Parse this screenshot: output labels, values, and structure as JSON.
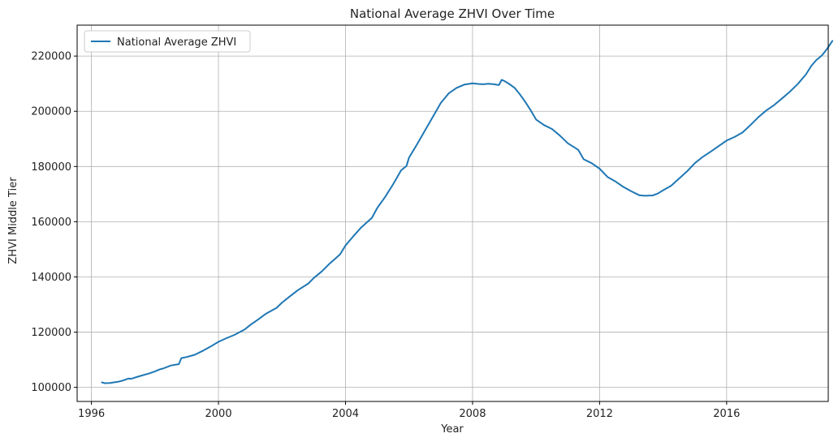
{
  "chart_data": {
    "type": "line",
    "title": "National Average ZHVI Over Time",
    "xlabel": "Year",
    "ylabel": "ZHVI Middle Tier",
    "xlim": [
      1995.55,
      2019.2
    ],
    "ylim": [
      94900,
      231200
    ],
    "grid": true,
    "legend_position": "top-left",
    "x_ticks": [
      1996,
      2000,
      2004,
      2008,
      2012,
      2016
    ],
    "x_tick_labels": [
      "1996",
      "2000",
      "2004",
      "2008",
      "2012",
      "2016"
    ],
    "y_ticks": [
      100000,
      120000,
      140000,
      160000,
      180000,
      200000,
      220000
    ],
    "y_tick_labels": [
      "100000",
      "120000",
      "140000",
      "160000",
      "180000",
      "200000",
      "220000"
    ],
    "series": [
      {
        "name": "National Average ZHVI",
        "color": "#1f77b4",
        "points": [
          [
            1996.33,
            101800
          ],
          [
            1996.42,
            101500
          ],
          [
            1996.58,
            101600
          ],
          [
            1996.83,
            102000
          ],
          [
            1997.0,
            102500
          ],
          [
            1997.17,
            103200
          ],
          [
            1997.25,
            103100
          ],
          [
            1997.5,
            104000
          ],
          [
            1997.83,
            105100
          ],
          [
            1998.0,
            105800
          ],
          [
            1998.17,
            106600
          ],
          [
            1998.25,
            106800
          ],
          [
            1998.5,
            107900
          ],
          [
            1998.75,
            108400
          ],
          [
            1998.83,
            110600
          ],
          [
            1999.0,
            111000
          ],
          [
            1999.25,
            111800
          ],
          [
            1999.5,
            113200
          ],
          [
            1999.75,
            114800
          ],
          [
            2000.0,
            116500
          ],
          [
            2000.25,
            117800
          ],
          [
            2000.5,
            119000
          ],
          [
            2000.83,
            121000
          ],
          [
            2001.0,
            122600
          ],
          [
            2001.25,
            124600
          ],
          [
            2001.5,
            126700
          ],
          [
            2001.83,
            128800
          ],
          [
            2002.0,
            130700
          ],
          [
            2002.25,
            133000
          ],
          [
            2002.5,
            135200
          ],
          [
            2002.83,
            137600
          ],
          [
            2003.0,
            139600
          ],
          [
            2003.25,
            142000
          ],
          [
            2003.5,
            144800
          ],
          [
            2003.83,
            148200
          ],
          [
            2004.0,
            151400
          ],
          [
            2004.25,
            154800
          ],
          [
            2004.5,
            158000
          ],
          [
            2004.83,
            161400
          ],
          [
            2005.0,
            165000
          ],
          [
            2005.25,
            169000
          ],
          [
            2005.5,
            173600
          ],
          [
            2005.75,
            178600
          ],
          [
            2005.92,
            180200
          ],
          [
            2006.0,
            183200
          ],
          [
            2006.25,
            188000
          ],
          [
            2006.5,
            193000
          ],
          [
            2006.75,
            198000
          ],
          [
            2007.0,
            203000
          ],
          [
            2007.25,
            206500
          ],
          [
            2007.5,
            208500
          ],
          [
            2007.75,
            209700
          ],
          [
            2008.0,
            210100
          ],
          [
            2008.17,
            209900
          ],
          [
            2008.33,
            209800
          ],
          [
            2008.5,
            210000
          ],
          [
            2008.67,
            209800
          ],
          [
            2008.83,
            209500
          ],
          [
            2008.92,
            211400
          ],
          [
            2009.0,
            211000
          ],
          [
            2009.17,
            209800
          ],
          [
            2009.33,
            208400
          ],
          [
            2009.5,
            206000
          ],
          [
            2009.67,
            203200
          ],
          [
            2009.83,
            200400
          ],
          [
            2010.0,
            197000
          ],
          [
            2010.25,
            195000
          ],
          [
            2010.5,
            193600
          ],
          [
            2010.75,
            191200
          ],
          [
            2011.0,
            188400
          ],
          [
            2011.25,
            186600
          ],
          [
            2011.33,
            186000
          ],
          [
            2011.5,
            182600
          ],
          [
            2011.75,
            181200
          ],
          [
            2012.0,
            179200
          ],
          [
            2012.25,
            176200
          ],
          [
            2012.5,
            174600
          ],
          [
            2012.75,
            172600
          ],
          [
            2013.0,
            171000
          ],
          [
            2013.25,
            169600
          ],
          [
            2013.42,
            169400
          ],
          [
            2013.67,
            169500
          ],
          [
            2013.83,
            170200
          ],
          [
            2014.0,
            171400
          ],
          [
            2014.25,
            173000
          ],
          [
            2014.5,
            175600
          ],
          [
            2014.75,
            178200
          ],
          [
            2015.0,
            181200
          ],
          [
            2015.25,
            183500
          ],
          [
            2015.5,
            185400
          ],
          [
            2015.75,
            187400
          ],
          [
            2016.0,
            189400
          ],
          [
            2016.25,
            190700
          ],
          [
            2016.5,
            192300
          ],
          [
            2016.75,
            195000
          ],
          [
            2017.0,
            197900
          ],
          [
            2017.25,
            200300
          ],
          [
            2017.5,
            202300
          ],
          [
            2017.75,
            204700
          ],
          [
            2018.0,
            207200
          ],
          [
            2018.25,
            210000
          ],
          [
            2018.5,
            213400
          ],
          [
            2018.67,
            216500
          ],
          [
            2018.83,
            218600
          ],
          [
            2019.0,
            220200
          ],
          [
            2019.17,
            222700
          ],
          [
            2019.33,
            225500
          ]
        ]
      }
    ]
  }
}
